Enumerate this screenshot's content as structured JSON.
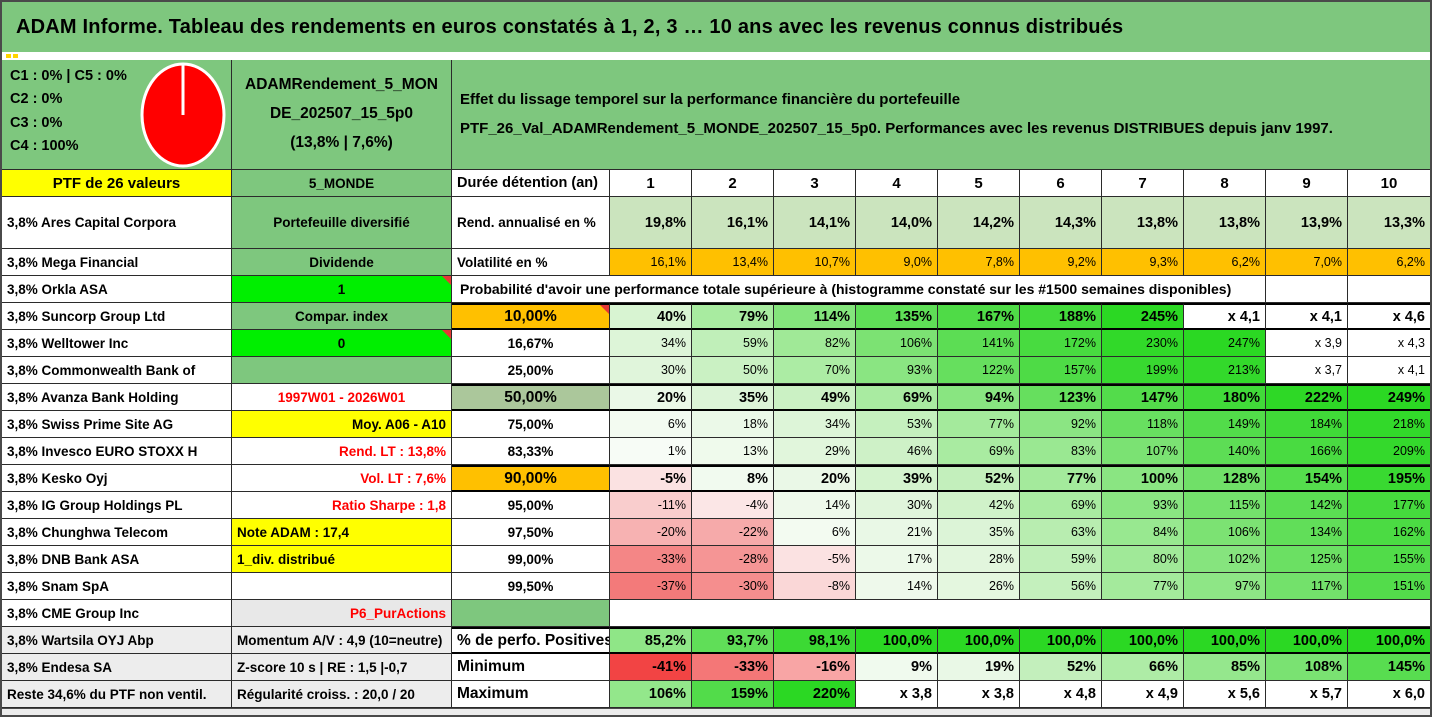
{
  "title": "ADAM Informe. Tableau des rendements en euros constatés à 1, 2, 3 … 10 ans avec les revenus connus distribués",
  "colors": {
    "header_green": "#7EC77E",
    "bright_green": "#00EF00",
    "yellow": "#FFFF00",
    "orange": "#FFC000",
    "sage": "#ABC79B",
    "rend_bg": "#CBE4BE",
    "gray": "#EDEDED",
    "red_text": "#FF0000",
    "pie_red": "#FF0000",
    "vivid_green": "#2BD823"
  },
  "header": {
    "allocations": [
      "C1 : 0% | C5 : 0%",
      "C2 : 0%",
      "C3 : 0%",
      "C4 : 100%"
    ],
    "pie": {
      "name": "allocation-pie",
      "slices": [
        {
          "label": "C4",
          "value": "100%",
          "color": "#FF0000"
        }
      ]
    },
    "fund_name_lines": [
      "ADAMRendement_5_MON",
      "DE_202507_15_5p0",
      "(13,8% | 7,6%)"
    ],
    "description_lines": [
      "Effet du lissage temporel sur la performance financière du portefeuille",
      "PTF_26_Val_ADAMRendement_5_MONDE_202507_15_5p0. Performances avec les revenus DISTRIBUES depuis janv 1997."
    ]
  },
  "columns": {
    "left": "PTF de 26 valeurs",
    "mid": "5_MONDE",
    "label": "Durée détention (an)",
    "years": [
      "1",
      "2",
      "3",
      "4",
      "5",
      "6",
      "7",
      "8",
      "9",
      "10"
    ]
  },
  "rows": [
    {
      "tall": true,
      "name": {
        "text": "3,8% Ares Capital Corpora"
      },
      "attr": {
        "text": "Portefeuille diversifié",
        "bg": "#7EC77E",
        "align": "c"
      },
      "label": {
        "text": "Rend. annualisé en %",
        "align": "l"
      },
      "cell_bold": true,
      "cells": [
        {
          "t": "19,8%",
          "bg": "#CBE4BE"
        },
        {
          "t": "16,1%",
          "bg": "#CBE4BE"
        },
        {
          "t": "14,1%",
          "bg": "#CBE4BE"
        },
        {
          "t": "14,0%",
          "bg": "#CBE4BE"
        },
        {
          "t": "14,2%",
          "bg": "#CBE4BE"
        },
        {
          "t": "14,3%",
          "bg": "#CBE4BE"
        },
        {
          "t": "13,8%",
          "bg": "#CBE4BE"
        },
        {
          "t": "13,8%",
          "bg": "#CBE4BE"
        },
        {
          "t": "13,9%",
          "bg": "#CBE4BE"
        },
        {
          "t": "13,3%",
          "bg": "#CBE4BE"
        }
      ]
    },
    {
      "name": {
        "text": "3,8% Mega Financial"
      },
      "attr": {
        "text": "Dividende",
        "bg": "#7EC77E",
        "align": "c"
      },
      "label": {
        "text": "Volatilité en %",
        "align": "l"
      },
      "cells": [
        {
          "t": "16,1%",
          "bg": "#FFC000"
        },
        {
          "t": "13,4%",
          "bg": "#FFC000"
        },
        {
          "t": "10,7%",
          "bg": "#FFC000"
        },
        {
          "t": "9,0%",
          "bg": "#FFC000"
        },
        {
          "t": "7,8%",
          "bg": "#FFC000"
        },
        {
          "t": "9,2%",
          "bg": "#FFC000"
        },
        {
          "t": "9,3%",
          "bg": "#FFC000"
        },
        {
          "t": "6,2%",
          "bg": "#FFC000"
        },
        {
          "t": "7,0%",
          "bg": "#FFC000"
        },
        {
          "t": "6,2%",
          "bg": "#FFC000"
        }
      ]
    },
    {
      "type": "merged",
      "name": {
        "text": "3,8% Orkla ASA"
      },
      "attr": {
        "text": "1",
        "bg": "#00EF00",
        "align": "c",
        "corner": true
      },
      "merged_text": "Probabilité d'avoir une performance totale supérieure à (histogramme constaté sur les #1500 semaines disponibles)"
    },
    {
      "name": {
        "text": "3,8% Suncorp Group Ltd"
      },
      "attr": {
        "text": "Compar. index",
        "bg": "#7EC77E",
        "align": "c"
      },
      "label": {
        "text": "10,00%",
        "bg": "#FFC000",
        "align": "c",
        "big": true,
        "corner": true
      },
      "cell_bold": true,
      "emph": true,
      "cells": [
        {
          "t": "40%",
          "bg": "#D8F4D2"
        },
        {
          "t": "79%",
          "bg": "#A8EBA0"
        },
        {
          "t": "114%",
          "bg": "#84E47C"
        },
        {
          "t": "135%",
          "bg": "#5FDE57"
        },
        {
          "t": "167%",
          "bg": "#4FDB47"
        },
        {
          "t": "188%",
          "bg": "#43DA3B"
        },
        {
          "t": "245%",
          "bg": "#2BD823"
        },
        {
          "t": "x 4,1",
          "bg": "#FFFFFF"
        },
        {
          "t": "x 4,1",
          "bg": "#FFFFFF"
        },
        {
          "t": "x 4,6",
          "bg": "#FFFFFF"
        }
      ]
    },
    {
      "name": {
        "text": "3,8% Welltower Inc"
      },
      "attr": {
        "text": "0",
        "bg": "#00EF00",
        "align": "c",
        "corner": true
      },
      "label": {
        "text": "16,67%",
        "align": "c"
      },
      "cells": [
        {
          "t": "34%",
          "bg": "#DDF5D8"
        },
        {
          "t": "59%",
          "bg": "#C0EFB9"
        },
        {
          "t": "82%",
          "bg": "#A0E997"
        },
        {
          "t": "106%",
          "bg": "#7CE273"
        },
        {
          "t": "141%",
          "bg": "#5CDD54"
        },
        {
          "t": "172%",
          "bg": "#48DB40"
        },
        {
          "t": "230%",
          "bg": "#31D929"
        },
        {
          "t": "247%",
          "bg": "#2BD823"
        },
        {
          "t": "x 3,9",
          "bg": "#FFFFFF"
        },
        {
          "t": "x 4,3",
          "bg": "#FFFFFF"
        }
      ]
    },
    {
      "name": {
        "text": "3,8% Commonwealth Bank of"
      },
      "attr": {
        "text": "",
        "bg": "#7EC77E"
      },
      "label": {
        "text": "25,00%",
        "align": "c"
      },
      "cells": [
        {
          "t": "30%",
          "bg": "#E0F5DB"
        },
        {
          "t": "50%",
          "bg": "#CAF1C3"
        },
        {
          "t": "70%",
          "bg": "#ACECA4"
        },
        {
          "t": "93%",
          "bg": "#8AE582"
        },
        {
          "t": "122%",
          "bg": "#66DF5E"
        },
        {
          "t": "157%",
          "bg": "#4EDB46"
        },
        {
          "t": "199%",
          "bg": "#38D930"
        },
        {
          "t": "213%",
          "bg": "#33D92B"
        },
        {
          "t": "x 3,7",
          "bg": "#FFFFFF"
        },
        {
          "t": "x 4,1",
          "bg": "#FFFFFF"
        }
      ]
    },
    {
      "name": {
        "text": "3,8% Avanza Bank Holding"
      },
      "attr": {
        "text": "1997W01 - 2026W01",
        "bg": "#FFFFFF",
        "color": "#FF0000",
        "align": "c"
      },
      "label": {
        "text": "50,00%",
        "bg": "#ABC79B",
        "align": "c",
        "big": true
      },
      "cell_bold": true,
      "emph": true,
      "cells": [
        {
          "t": "20%",
          "bg": "#EAF8E7"
        },
        {
          "t": "35%",
          "bg": "#DCF4D7"
        },
        {
          "t": "49%",
          "bg": "#CBF1C4"
        },
        {
          "t": "69%",
          "bg": "#A9EBA1"
        },
        {
          "t": "94%",
          "bg": "#89E581"
        },
        {
          "t": "123%",
          "bg": "#66DF5E"
        },
        {
          "t": "147%",
          "bg": "#53DC4B"
        },
        {
          "t": "180%",
          "bg": "#41DA39"
        },
        {
          "t": "222%",
          "bg": "#2ED826"
        },
        {
          "t": "249%",
          "bg": "#2BD823"
        }
      ]
    },
    {
      "name": {
        "text": "3,8% Swiss Prime Site AG"
      },
      "attr": {
        "text": "Moy. A06 - A10",
        "bg": "#FFFF00",
        "align": "r"
      },
      "label": {
        "text": "75,00%",
        "align": "c"
      },
      "cells": [
        {
          "t": "6%",
          "bg": "#F3FBF1"
        },
        {
          "t": "18%",
          "bg": "#EBF9E8"
        },
        {
          "t": "34%",
          "bg": "#DDF5D8"
        },
        {
          "t": "53%",
          "bg": "#C5F0BE"
        },
        {
          "t": "77%",
          "bg": "#A4EA9C"
        },
        {
          "t": "92%",
          "bg": "#8BE583"
        },
        {
          "t": "118%",
          "bg": "#68DF60"
        },
        {
          "t": "149%",
          "bg": "#52DC4A"
        },
        {
          "t": "184%",
          "bg": "#40DA38"
        },
        {
          "t": "218%",
          "bg": "#32D92A"
        }
      ]
    },
    {
      "name": {
        "text": "3,8% Invesco EURO STOXX H"
      },
      "attr": {
        "text": "Rend. LT : 13,8%",
        "bg": "#FFFFFF",
        "color": "#FF0000",
        "align": "r"
      },
      "label": {
        "text": "83,33%",
        "align": "c"
      },
      "cells": [
        {
          "t": "1%",
          "bg": "#F7FCF6"
        },
        {
          "t": "13%",
          "bg": "#EFFAEC"
        },
        {
          "t": "29%",
          "bg": "#E1F6DC"
        },
        {
          "t": "46%",
          "bg": "#CEF1C7"
        },
        {
          "t": "69%",
          "bg": "#A9EBA1"
        },
        {
          "t": "83%",
          "bg": "#9AE892"
        },
        {
          "t": "107%",
          "bg": "#7BE273"
        },
        {
          "t": "140%",
          "bg": "#5DDD55"
        },
        {
          "t": "166%",
          "bg": "#49DB41"
        },
        {
          "t": "209%",
          "bg": "#34D92C"
        }
      ]
    },
    {
      "name": {
        "text": "3,8% Kesko Oyj"
      },
      "attr": {
        "text": "Vol. LT : 7,6%",
        "bg": "#FFFFFF",
        "color": "#FF0000",
        "align": "r"
      },
      "label": {
        "text": "90,00%",
        "bg": "#FFC000",
        "align": "c",
        "big": true
      },
      "cell_bold": true,
      "emph": true,
      "cells": [
        {
          "t": "-5%",
          "bg": "#FBE2E2"
        },
        {
          "t": "8%",
          "bg": "#F1FAEF"
        },
        {
          "t": "20%",
          "bg": "#EAF8E7"
        },
        {
          "t": "39%",
          "bg": "#D4F3CE"
        },
        {
          "t": "52%",
          "bg": "#C3EFBC"
        },
        {
          "t": "77%",
          "bg": "#A4EA9C"
        },
        {
          "t": "100%",
          "bg": "#8AE582"
        },
        {
          "t": "128%",
          "bg": "#70E068"
        },
        {
          "t": "154%",
          "bg": "#55DD4D"
        },
        {
          "t": "195%",
          "bg": "#39D931"
        }
      ]
    },
    {
      "name": {
        "text": "3,8% IG Group Holdings PL"
      },
      "attr": {
        "text": "Ratio Sharpe : 1,8",
        "bg": "#FFFFFF",
        "color": "#FF0000",
        "align": "r"
      },
      "label": {
        "text": "95,00%",
        "align": "c"
      },
      "cells": [
        {
          "t": "-11%",
          "bg": "#F9CDCD"
        },
        {
          "t": "-4%",
          "bg": "#FBE6E6"
        },
        {
          "t": "14%",
          "bg": "#EEF9EB"
        },
        {
          "t": "30%",
          "bg": "#E0F5DB"
        },
        {
          "t": "42%",
          "bg": "#D0F2C9"
        },
        {
          "t": "69%",
          "bg": "#A9EBA1"
        },
        {
          "t": "93%",
          "bg": "#8AE582"
        },
        {
          "t": "115%",
          "bg": "#74E16C"
        },
        {
          "t": "142%",
          "bg": "#5BDD53"
        },
        {
          "t": "177%",
          "bg": "#45DA3D"
        }
      ]
    },
    {
      "name": {
        "text": "3,8% Chunghwa Telecom"
      },
      "attr": {
        "text": "Note ADAM : 17,4",
        "bg": "#FFFF00",
        "align": "l"
      },
      "label": {
        "text": "97,50%",
        "align": "c"
      },
      "cells": [
        {
          "t": "-20%",
          "bg": "#F7B2B2"
        },
        {
          "t": "-22%",
          "bg": "#F6AAAA"
        },
        {
          "t": "6%",
          "bg": "#F3FBF1"
        },
        {
          "t": "21%",
          "bg": "#E9F8E6"
        },
        {
          "t": "35%",
          "bg": "#DCF4D7"
        },
        {
          "t": "63%",
          "bg": "#B8EDB0"
        },
        {
          "t": "84%",
          "bg": "#98E890"
        },
        {
          "t": "106%",
          "bg": "#7CE273"
        },
        {
          "t": "134%",
          "bg": "#61DE59"
        },
        {
          "t": "162%",
          "bg": "#4BDB43"
        }
      ]
    },
    {
      "name": {
        "text": "3,8% DNB Bank ASA"
      },
      "attr": {
        "text": "1_div. distribué",
        "bg": "#FFFF00",
        "align": "l"
      },
      "label": {
        "text": "99,00%",
        "align": "c"
      },
      "cells": [
        {
          "t": "-33%",
          "bg": "#F48686"
        },
        {
          "t": "-28%",
          "bg": "#F59595"
        },
        {
          "t": "-5%",
          "bg": "#FBE2E2"
        },
        {
          "t": "17%",
          "bg": "#ECF9E9"
        },
        {
          "t": "28%",
          "bg": "#E2F6DD"
        },
        {
          "t": "59%",
          "bg": "#C0EFB9"
        },
        {
          "t": "80%",
          "bg": "#A0E998"
        },
        {
          "t": "102%",
          "bg": "#86E47E"
        },
        {
          "t": "125%",
          "bg": "#6BE063"
        },
        {
          "t": "155%",
          "bg": "#51DC49"
        }
      ]
    },
    {
      "name": {
        "text": "3,8% Snam SpA"
      },
      "attr": {
        "text": "",
        "bg": "#FFFFFF"
      },
      "label": {
        "text": "99,50%",
        "align": "c"
      },
      "cells": [
        {
          "t": "-37%",
          "bg": "#F37A7A"
        },
        {
          "t": "-30%",
          "bg": "#F58E8E"
        },
        {
          "t": "-8%",
          "bg": "#FAD7D7"
        },
        {
          "t": "14%",
          "bg": "#EEF9EB"
        },
        {
          "t": "26%",
          "bg": "#E4F7DF"
        },
        {
          "t": "56%",
          "bg": "#C4F0BD"
        },
        {
          "t": "77%",
          "bg": "#A4EA9C"
        },
        {
          "t": "97%",
          "bg": "#8EE686"
        },
        {
          "t": "117%",
          "bg": "#73E16B"
        },
        {
          "t": "151%",
          "bg": "#53DC4B"
        }
      ]
    },
    {
      "type": "blank",
      "name": {
        "text": "3,8% CME Group Inc"
      },
      "attr": {
        "text": "P6_PurActions",
        "bg": "#E8E8E8",
        "color": "#FF0000",
        "align": "r"
      },
      "label": {
        "text": "",
        "bg": "#7EC77E"
      }
    },
    {
      "name": {
        "text": "3,8% Wartsila OYJ Abp",
        "bg": "#EDEDED"
      },
      "attr": {
        "text": "Momentum A/V : 4,9 (10=neutre)",
        "bg": "#EDEDED",
        "align": "l"
      },
      "label": {
        "text": "% de perfo. Positives",
        "align": "l",
        "big": true
      },
      "cell_bold": true,
      "emph": true,
      "cells": [
        {
          "t": "85,2%",
          "bg": "#8FE687"
        },
        {
          "t": "93,7%",
          "bg": "#60DE58"
        },
        {
          "t": "98,1%",
          "bg": "#3CD934"
        },
        {
          "t": "100,0%",
          "bg": "#2BD823"
        },
        {
          "t": "100,0%",
          "bg": "#2BD823"
        },
        {
          "t": "100,0%",
          "bg": "#2BD823"
        },
        {
          "t": "100,0%",
          "bg": "#2BD823"
        },
        {
          "t": "100,0%",
          "bg": "#2BD823"
        },
        {
          "t": "100,0%",
          "bg": "#2BD823"
        },
        {
          "t": "100,0%",
          "bg": "#2BD823"
        }
      ]
    },
    {
      "name": {
        "text": "3,8% Endesa SA",
        "bg": "#EDEDED"
      },
      "attr": {
        "text": "Z-score 10 s | RE : 1,5 |-0,7",
        "bg": "#EDEDED",
        "align": "l"
      },
      "label": {
        "text": "Minimum",
        "align": "l",
        "big": true
      },
      "cell_bold": true,
      "cells": [
        {
          "t": "-41%",
          "bg": "#F24444"
        },
        {
          "t": "-33%",
          "bg": "#F47777"
        },
        {
          "t": "-16%",
          "bg": "#F8A5A5"
        },
        {
          "t": "9%",
          "bg": "#F0FAEE"
        },
        {
          "t": "19%",
          "bg": "#E9F8E6"
        },
        {
          "t": "52%",
          "bg": "#C3EFBC"
        },
        {
          "t": "66%",
          "bg": "#AEECA6"
        },
        {
          "t": "85%",
          "bg": "#95E78D"
        },
        {
          "t": "108%",
          "bg": "#7AE272"
        },
        {
          "t": "145%",
          "bg": "#58DD50"
        }
      ]
    },
    {
      "name": {
        "text": "Reste 34,6% du PTF non ventil.",
        "bg": "#EDEDED"
      },
      "attr": {
        "text": "Régularité croiss. : 20,0 / 20",
        "bg": "#EDEDED",
        "align": "l"
      },
      "label": {
        "text": "Maximum",
        "align": "l",
        "big": true
      },
      "cell_bold": true,
      "cells": [
        {
          "t": "106%",
          "bg": "#93E78B"
        },
        {
          "t": "159%",
          "bg": "#52DC4A"
        },
        {
          "t": "220%",
          "bg": "#2BD823"
        },
        {
          "t": "x 3,8",
          "bg": "#FFFFFF"
        },
        {
          "t": "x 3,8",
          "bg": "#FFFFFF"
        },
        {
          "t": "x 4,8",
          "bg": "#FFFFFF"
        },
        {
          "t": "x 4,9",
          "bg": "#FFFFFF"
        },
        {
          "t": "x 5,6",
          "bg": "#FFFFFF"
        },
        {
          "t": "x 5,7",
          "bg": "#FFFFFF"
        },
        {
          "t": "x 6,0",
          "bg": "#FFFFFF"
        }
      ]
    }
  ]
}
